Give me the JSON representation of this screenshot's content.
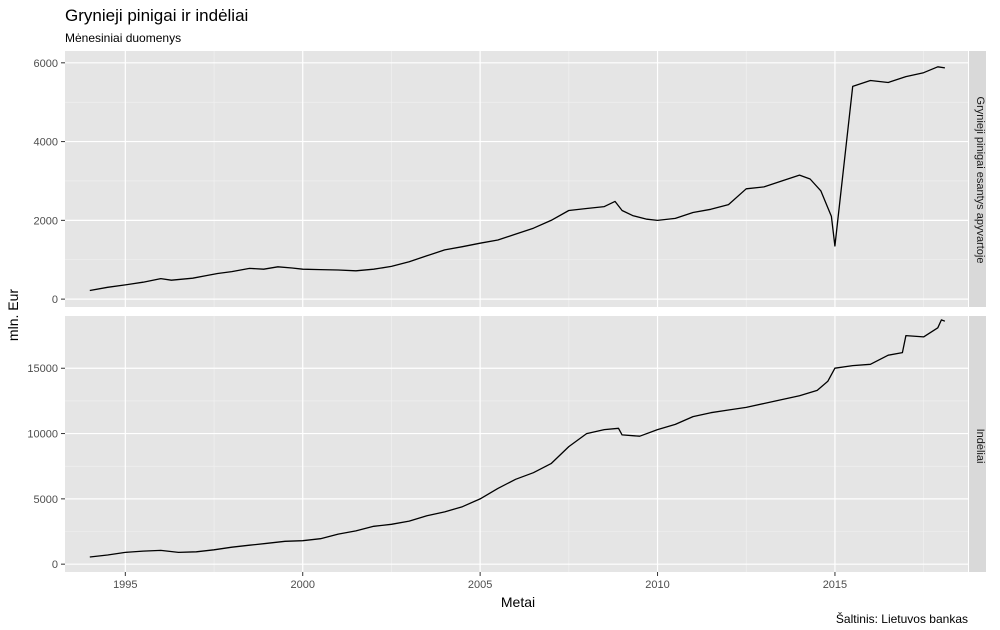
{
  "colors": {
    "panel_bg": "#e5e5e5",
    "grid_major": "#ffffff",
    "line": "#000000",
    "tick_text": "#4d4d4d"
  },
  "chart_data": {
    "type": "line",
    "title": "Grynieji pinigai ir indėliai",
    "subtitle": "Mėnesiniai duomenys",
    "xlabel": "Metai",
    "ylabel": "mln. Eur",
    "caption": "Šaltinis: Lietuvos bankas",
    "grid": true,
    "xlim": [
      1993.3,
      2018.75
    ],
    "x_ticks": [
      1995,
      2000,
      2005,
      2010,
      2015
    ],
    "x_tick_labels": [
      "1995",
      "2000",
      "2005",
      "2010",
      "2015"
    ],
    "panels": [
      {
        "strip_label": "Grynieji pinigai esantys apyvartoje",
        "ylim": [
          -200,
          6300
        ],
        "y_ticks": [
          0,
          2000,
          4000,
          6000
        ],
        "y_tick_labels": [
          "0",
          "2000",
          "4000",
          "6000"
        ],
        "x": [
          1994.0,
          1994.5,
          1995.0,
          1995.5,
          1996.0,
          1996.3,
          1996.9,
          1997.3,
          1997.6,
          1998.0,
          1998.5,
          1998.9,
          1999.3,
          1999.7,
          2000.0,
          2000.5,
          2001.0,
          2001.5,
          2002.0,
          2002.5,
          2003.0,
          2003.5,
          2004.0,
          2004.5,
          2005.0,
          2005.5,
          2006.0,
          2006.5,
          2007.0,
          2007.5,
          2008.0,
          2008.5,
          2008.8,
          2009.0,
          2009.3,
          2009.7,
          2010.0,
          2010.5,
          2011.0,
          2011.5,
          2012.0,
          2012.5,
          2013.0,
          2013.5,
          2014.0,
          2014.3,
          2014.6,
          2014.9,
          2015.0,
          2015.5,
          2016.0,
          2016.5,
          2017.0,
          2017.5,
          2017.9,
          2018.1
        ],
        "y": [
          220,
          300,
          360,
          430,
          520,
          480,
          530,
          600,
          650,
          700,
          780,
          760,
          820,
          790,
          760,
          750,
          740,
          720,
          760,
          830,
          950,
          1100,
          1250,
          1330,
          1420,
          1500,
          1650,
          1800,
          2000,
          2250,
          2300,
          2350,
          2480,
          2250,
          2120,
          2030,
          2000,
          2050,
          2200,
          2280,
          2400,
          2800,
          2850,
          3000,
          3150,
          3050,
          2750,
          2100,
          1350,
          5400,
          5550,
          5500,
          5650,
          5750,
          5900,
          5870
        ]
      },
      {
        "strip_label": "Indėliai",
        "ylim": [
          -600,
          19000
        ],
        "y_ticks": [
          0,
          5000,
          10000,
          15000
        ],
        "y_tick_labels": [
          "0",
          "5000",
          "10000",
          "15000"
        ],
        "x": [
          1994.0,
          1994.5,
          1995.0,
          1995.5,
          1996.0,
          1996.5,
          1997.0,
          1997.5,
          1998.0,
          1998.5,
          1999.0,
          1999.5,
          2000.0,
          2000.5,
          2001.0,
          2001.5,
          2002.0,
          2002.5,
          2003.0,
          2003.5,
          2004.0,
          2004.5,
          2005.0,
          2005.5,
          2006.0,
          2006.5,
          2007.0,
          2007.5,
          2008.0,
          2008.5,
          2008.9,
          2009.0,
          2009.5,
          2010.0,
          2010.5,
          2011.0,
          2011.5,
          2012.0,
          2012.5,
          2013.0,
          2013.5,
          2014.0,
          2014.5,
          2014.8,
          2015.0,
          2015.5,
          2016.0,
          2016.5,
          2016.9,
          2017.0,
          2017.5,
          2017.9,
          2018.0,
          2018.1
        ],
        "y": [
          550,
          700,
          900,
          1000,
          1050,
          900,
          950,
          1100,
          1300,
          1450,
          1600,
          1750,
          1800,
          1950,
          2300,
          2550,
          2900,
          3050,
          3300,
          3700,
          4000,
          4400,
          5000,
          5800,
          6500,
          7000,
          7700,
          9000,
          10000,
          10300,
          10400,
          9900,
          9800,
          10300,
          10700,
          11300,
          11600,
          11800,
          12000,
          12300,
          12600,
          12900,
          13300,
          14000,
          15000,
          15200,
          15300,
          16000,
          16200,
          17500,
          17400,
          18100,
          18700,
          18600
        ]
      }
    ]
  }
}
